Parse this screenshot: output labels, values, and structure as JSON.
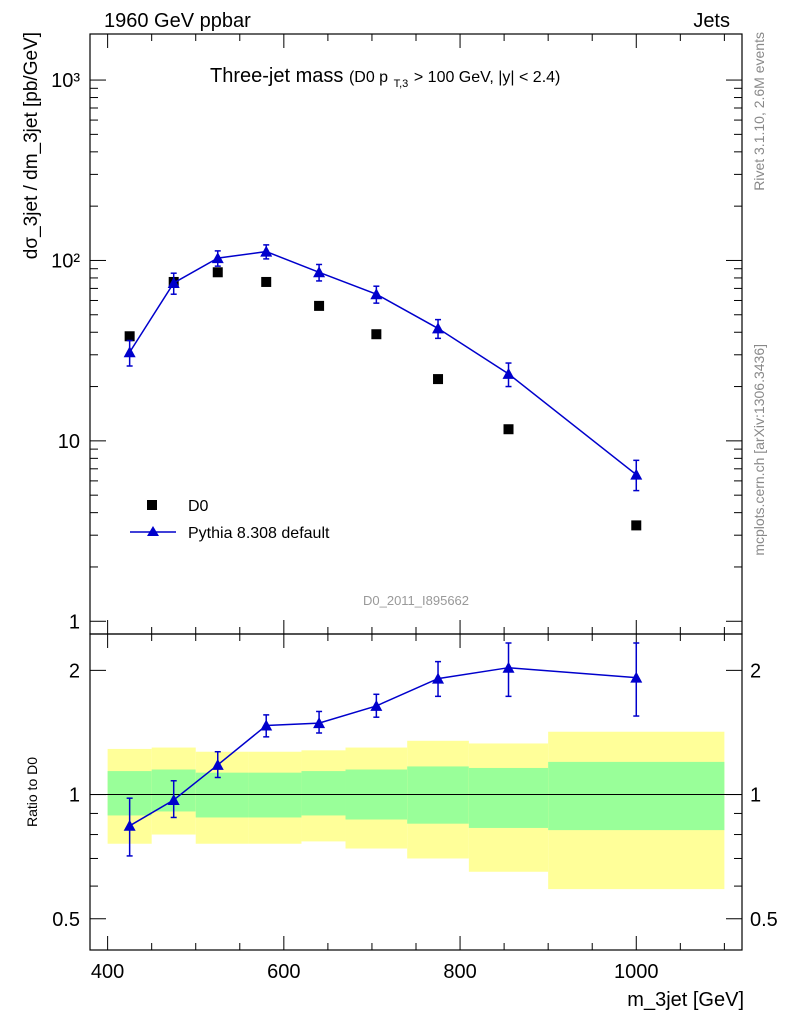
{
  "header": {
    "left": "1960 GeV ppbar",
    "right": "Jets",
    "title_main": "Three-jet mass",
    "title_sub_prefix": "(D0 p",
    "title_sub_subscript": "T,3",
    "title_sub_suffix": " > 100 GeV, |y| < 2.4)",
    "analysis_id": "D0_2011_I895662",
    "side_rivet": "Rivet 3.1.10,  2.6M events",
    "side_mcplots": "mcplots.cern.ch [arXiv:1306.3436]"
  },
  "chart_data": [
    {
      "type": "scatter",
      "scale": "log",
      "ylabel": "dσ_3jet / dm_3jet [pb/GeV]",
      "xlim": [
        380,
        1120
      ],
      "ylim": [
        0.85,
        1800
      ],
      "y_ticks": [
        {
          "value": 1,
          "label": "1"
        },
        {
          "value": 10,
          "label": "10"
        },
        {
          "value": 100,
          "label": "10²"
        },
        {
          "value": 1000,
          "label": "10³"
        }
      ],
      "legend_position": "lower-left",
      "series": [
        {
          "name": "D0",
          "marker": "square",
          "color": "#000000",
          "x": [
            425,
            475,
            525,
            580,
            640,
            705,
            775,
            855,
            1000
          ],
          "y": [
            38,
            76,
            86,
            76,
            56,
            39,
            22,
            11.6,
            3.4
          ]
        },
        {
          "name": "Pythia 8.308 default",
          "marker": "triangle",
          "color": "#0000cc",
          "x": [
            425,
            475,
            525,
            580,
            640,
            705,
            775,
            855,
            1000
          ],
          "y": [
            31,
            75,
            103,
            112,
            86,
            65,
            42,
            23.5,
            6.5
          ],
          "err_low": [
            5,
            10,
            10,
            10,
            9,
            7,
            5,
            3.5,
            1.2
          ],
          "err_high": [
            5,
            10,
            10,
            10,
            9,
            7,
            5,
            3.5,
            1.3
          ]
        }
      ]
    },
    {
      "type": "line",
      "scale": "log",
      "ylabel": "Ratio to D0",
      "xlabel": "m_3jet [GeV]",
      "xlim": [
        380,
        1120
      ],
      "ylim": [
        0.42,
        2.45
      ],
      "x_ticks": [
        {
          "value": 400,
          "label": "400"
        },
        {
          "value": 600,
          "label": "600"
        },
        {
          "value": 800,
          "label": "800"
        },
        {
          "value": 1000,
          "label": "1000"
        }
      ],
      "y_ticks": [
        {
          "value": 0.5,
          "label": "0.5"
        },
        {
          "value": 1,
          "label": "1"
        },
        {
          "value": 2,
          "label": "2"
        }
      ],
      "bands": [
        {
          "x0": 400,
          "x1": 450,
          "outer_lo": 0.76,
          "outer_hi": 1.29,
          "inner_lo": 0.89,
          "inner_hi": 1.14
        },
        {
          "x0": 450,
          "x1": 500,
          "outer_lo": 0.8,
          "outer_hi": 1.3,
          "inner_lo": 0.91,
          "inner_hi": 1.15
        },
        {
          "x0": 500,
          "x1": 560,
          "outer_lo": 0.76,
          "outer_hi": 1.27,
          "inner_lo": 0.88,
          "inner_hi": 1.13
        },
        {
          "x0": 560,
          "x1": 620,
          "outer_lo": 0.76,
          "outer_hi": 1.27,
          "inner_lo": 0.88,
          "inner_hi": 1.13
        },
        {
          "x0": 620,
          "x1": 670,
          "outer_lo": 0.77,
          "outer_hi": 1.28,
          "inner_lo": 0.89,
          "inner_hi": 1.14
        },
        {
          "x0": 670,
          "x1": 740,
          "outer_lo": 0.74,
          "outer_hi": 1.3,
          "inner_lo": 0.87,
          "inner_hi": 1.15
        },
        {
          "x0": 740,
          "x1": 810,
          "outer_lo": 0.7,
          "outer_hi": 1.35,
          "inner_lo": 0.85,
          "inner_hi": 1.17
        },
        {
          "x0": 810,
          "x1": 900,
          "outer_lo": 0.65,
          "outer_hi": 1.33,
          "inner_lo": 0.83,
          "inner_hi": 1.16
        },
        {
          "x0": 900,
          "x1": 1100,
          "outer_lo": 0.59,
          "outer_hi": 1.42,
          "inner_lo": 0.82,
          "inner_hi": 1.2
        }
      ],
      "band_colors": {
        "outer": "#ffff99",
        "inner": "#99ff99"
      },
      "series": [
        {
          "name": "Pythia 8.308 default",
          "color": "#0000cc",
          "x": [
            425,
            475,
            525,
            580,
            640,
            705,
            775,
            855,
            1000
          ],
          "y": [
            0.84,
            0.97,
            1.18,
            1.47,
            1.49,
            1.64,
            1.91,
            2.03,
            1.92
          ],
          "err_low": [
            0.13,
            0.09,
            0.08,
            0.09,
            0.08,
            0.1,
            0.18,
            0.3,
            0.37
          ],
          "err_high": [
            0.14,
            0.11,
            0.09,
            0.09,
            0.1,
            0.11,
            0.19,
            0.3,
            0.41
          ]
        }
      ]
    }
  ]
}
